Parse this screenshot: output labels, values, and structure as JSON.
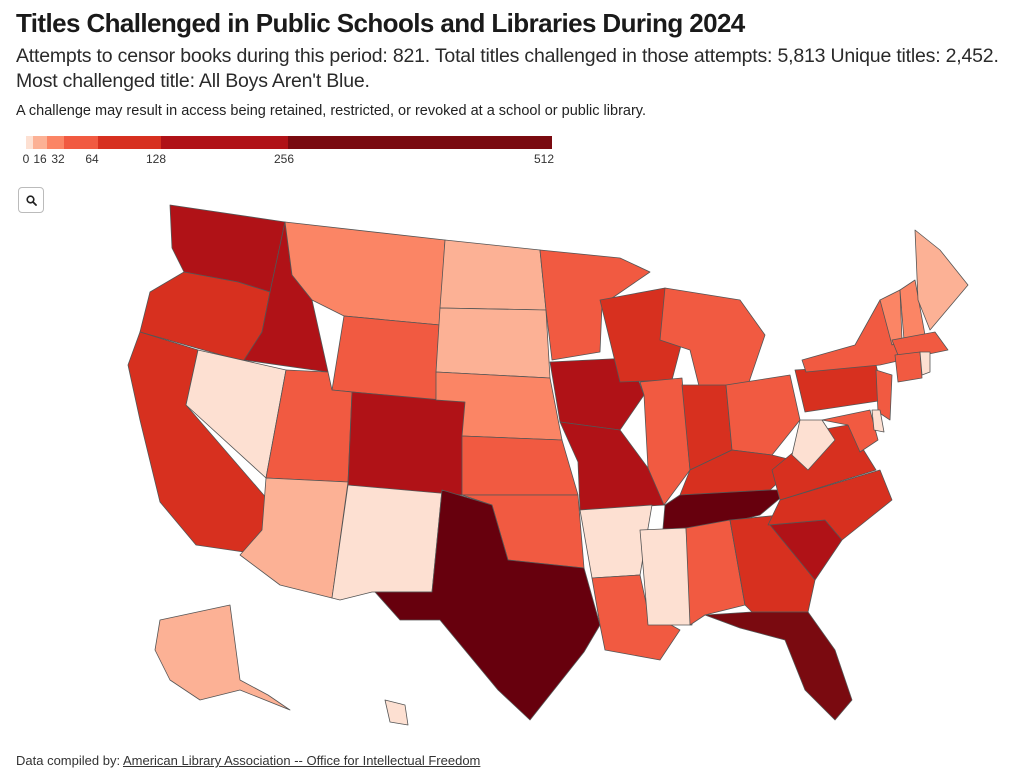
{
  "header": {
    "title": "Titles Challenged in Public Schools and Libraries During 2024",
    "subtitle": "Attempts to censor books during this period: 821. Total titles challenged in those attempts: 5,813 Unique titles: 2,452. Most challenged title: All Boys Aren't Blue.",
    "note": "A challenge may result in access being retained, restricted, or revoked at a school or public library."
  },
  "legend": {
    "ticks": [
      "0",
      "16",
      "32",
      "64",
      "128",
      "256",
      "512"
    ],
    "colors": [
      "#fde0d2",
      "#fcb195",
      "#fb8565",
      "#f15a41",
      "#d7301f",
      "#b01217",
      "#7a0a10"
    ]
  },
  "controls": {
    "zoom_icon": "search-icon"
  },
  "footer": {
    "prefix": "Data compiled by:",
    "link": "American Library Association -- Office for Intellectual Freedom"
  },
  "chart_data": {
    "type": "choropleth",
    "scale": "log2",
    "legend_ticks": [
      0,
      16,
      32,
      64,
      128,
      256,
      512
    ],
    "states": [
      {
        "state": "WA",
        "value": 300
      },
      {
        "state": "OR",
        "value": 150
      },
      {
        "state": "CA",
        "value": 170
      },
      {
        "state": "NV",
        "value": 5
      },
      {
        "state": "ID",
        "value": 280
      },
      {
        "state": "MT",
        "value": 50
      },
      {
        "state": "WY",
        "value": 80
      },
      {
        "state": "UT",
        "value": 90
      },
      {
        "state": "AZ",
        "value": 30
      },
      {
        "state": "NM",
        "value": 8
      },
      {
        "state": "CO",
        "value": 300
      },
      {
        "state": "ND",
        "value": 25
      },
      {
        "state": "SD",
        "value": 25
      },
      {
        "state": "NE",
        "value": 55
      },
      {
        "state": "KS",
        "value": 65
      },
      {
        "state": "OK",
        "value": 80
      },
      {
        "state": "TX",
        "value": 1500
      },
      {
        "state": "MN",
        "value": 75
      },
      {
        "state": "IA",
        "value": 500
      },
      {
        "state": "MO",
        "value": 300
      },
      {
        "state": "AR",
        "value": 15
      },
      {
        "state": "LA",
        "value": 80
      },
      {
        "state": "WI",
        "value": 250
      },
      {
        "state": "IL",
        "value": 90
      },
      {
        "state": "MI",
        "value": 80
      },
      {
        "state": "IN",
        "value": 150
      },
      {
        "state": "OH",
        "value": 90
      },
      {
        "state": "KY",
        "value": 130
      },
      {
        "state": "TN",
        "value": 1200
      },
      {
        "state": "MS",
        "value": 6
      },
      {
        "state": "AL",
        "value": 70
      },
      {
        "state": "GA",
        "value": 180
      },
      {
        "state": "FL",
        "value": 600
      },
      {
        "state": "SC",
        "value": 450
      },
      {
        "state": "NC",
        "value": 200
      },
      {
        "state": "VA",
        "value": 230
      },
      {
        "state": "WV",
        "value": 10
      },
      {
        "state": "PA",
        "value": 250
      },
      {
        "state": "NY",
        "value": 70
      },
      {
        "state": "VT",
        "value": 40
      },
      {
        "state": "NH",
        "value": 40
      },
      {
        "state": "ME",
        "value": 25
      },
      {
        "state": "MA",
        "value": 100
      },
      {
        "state": "CT",
        "value": 100
      },
      {
        "state": "NJ",
        "value": 90
      },
      {
        "state": "MD",
        "value": 90
      },
      {
        "state": "DE",
        "value": 5
      },
      {
        "state": "RI",
        "value": 8
      },
      {
        "state": "AK",
        "value": 30
      },
      {
        "state": "HI",
        "value": 8
      }
    ]
  }
}
